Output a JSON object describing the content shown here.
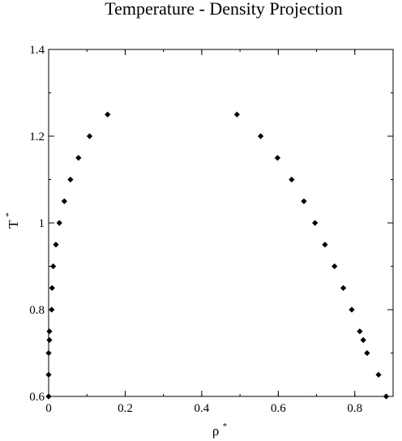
{
  "chart_data": {
    "type": "scatter",
    "title": "Temperature - Density Projection",
    "xlabel": "ρ",
    "xlabel_superscript": "*",
    "ylabel": "T",
    "ylabel_superscript": "*",
    "xlim": [
      0,
      0.9
    ],
    "ylim": [
      0.6,
      1.4
    ],
    "xticks": [
      0,
      0.2,
      0.4,
      0.6,
      0.8
    ],
    "xtick_labels": [
      "0",
      "0.2",
      "0.4",
      "0.6",
      "0.8"
    ],
    "yticks": [
      0.6,
      0.8,
      1.0,
      1.2,
      1.4
    ],
    "ytick_labels": [
      "0.6",
      "0.8",
      "1",
      "1.2",
      "1.4"
    ],
    "x_minor_step": 0.1,
    "y_minor_step": 0.1,
    "grid": false,
    "legend": "none",
    "marker_color": "#000000",
    "series": [
      {
        "points": [
          {
            "x": 0.0,
            "y": 0.6
          },
          {
            "x": 0.0,
            "y": 0.65
          },
          {
            "x": 0.0,
            "y": 0.7
          },
          {
            "x": 0.002,
            "y": 0.73
          },
          {
            "x": 0.002,
            "y": 0.75
          },
          {
            "x": 0.008,
            "y": 0.8
          },
          {
            "x": 0.009,
            "y": 0.85
          },
          {
            "x": 0.012,
            "y": 0.9
          },
          {
            "x": 0.019,
            "y": 0.95
          },
          {
            "x": 0.028,
            "y": 1.0
          },
          {
            "x": 0.041,
            "y": 1.05
          },
          {
            "x": 0.057,
            "y": 1.1
          },
          {
            "x": 0.078,
            "y": 1.15
          },
          {
            "x": 0.107,
            "y": 1.2
          },
          {
            "x": 0.154,
            "y": 1.25
          },
          {
            "x": 0.492,
            "y": 1.25
          },
          {
            "x": 0.554,
            "y": 1.2
          },
          {
            "x": 0.598,
            "y": 1.15
          },
          {
            "x": 0.635,
            "y": 1.1
          },
          {
            "x": 0.667,
            "y": 1.05
          },
          {
            "x": 0.696,
            "y": 1.0
          },
          {
            "x": 0.722,
            "y": 0.95
          },
          {
            "x": 0.747,
            "y": 0.9
          },
          {
            "x": 0.77,
            "y": 0.85
          },
          {
            "x": 0.792,
            "y": 0.8
          },
          {
            "x": 0.813,
            "y": 0.75
          },
          {
            "x": 0.822,
            "y": 0.73
          },
          {
            "x": 0.832,
            "y": 0.7
          },
          {
            "x": 0.862,
            "y": 0.65
          },
          {
            "x": 0.882,
            "y": 0.6
          }
        ]
      }
    ]
  }
}
